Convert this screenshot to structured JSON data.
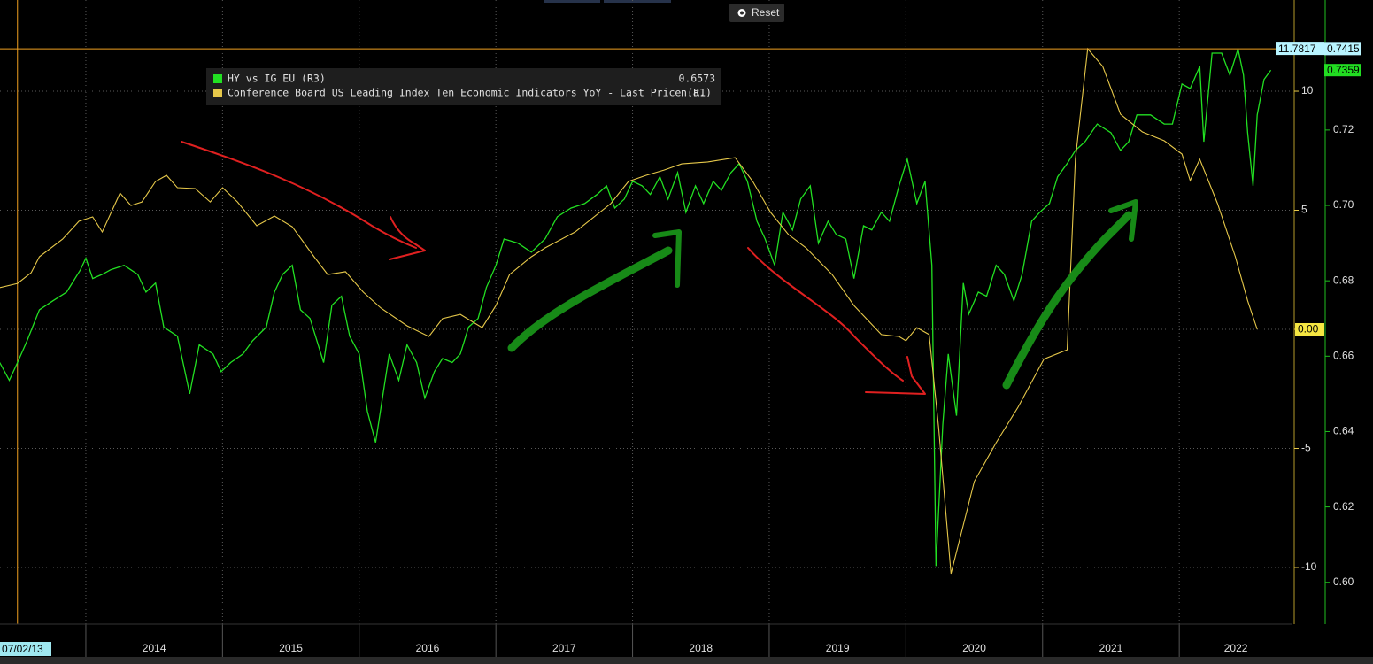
{
  "chart_data": {
    "type": "line",
    "xlim": [
      2013.372,
      2022.828
    ],
    "xticks": [
      {
        "value": 2014,
        "label": "2014"
      },
      {
        "value": 2015,
        "label": "2015"
      },
      {
        "value": 2016,
        "label": "2016"
      },
      {
        "value": 2017,
        "label": "2017"
      },
      {
        "value": 2018,
        "label": "2018"
      },
      {
        "value": 2019,
        "label": "2019"
      },
      {
        "value": 2020,
        "label": "2020"
      },
      {
        "value": 2021,
        "label": "2021"
      },
      {
        "value": 2022,
        "label": "2022"
      }
    ],
    "ylim": [
      -12.38,
      13.83
    ],
    "yticks": [
      -10,
      -5,
      0,
      5,
      10
    ],
    "y2lim": [
      0.5889,
      0.7545
    ],
    "y2ticks": [
      {
        "value": 0.6,
        "label": "0.60"
      },
      0.62,
      0.64,
      0.66,
      0.68,
      {
        "value": 0.7,
        "label": "0.70"
      },
      0.72
    ],
    "grid": true,
    "crosshair": {
      "x": 2013.5,
      "label": "07/02/13"
    },
    "reset_label": "Reset",
    "markers": [
      {
        "value": 11.7817,
        "axis": "y",
        "color": "#b8f4ff",
        "line": true
      },
      {
        "value": 0.7415,
        "axis": "y2",
        "color": "#b8f4ff"
      },
      {
        "value": 0.7359,
        "axis": "y2",
        "color": "#22dd22"
      },
      {
        "value": 0,
        "label": "0.00",
        "axis": "y",
        "color": "#f5e642"
      }
    ],
    "series": [
      {
        "name": "HY vs IG EU (R3)",
        "legend_value": 0.6573,
        "color": "#22e022",
        "axis": "y2",
        "x": [
          2013.37,
          2013.44,
          2013.5,
          2013.57,
          2013.66,
          2013.76,
          2013.86,
          2013.96,
          2014.0,
          2014.05,
          2014.12,
          2014.18,
          2014.28,
          2014.38,
          2014.44,
          2014.51,
          2014.57,
          2014.67,
          2014.76,
          2014.83,
          2014.93,
          2014.99,
          2015.06,
          2015.15,
          2015.22,
          2015.32,
          2015.38,
          2015.44,
          2015.51,
          2015.57,
          2015.64,
          2015.74,
          2015.8,
          2015.87,
          2015.93,
          2016.0,
          2016.06,
          2016.12,
          2016.17,
          2016.22,
          2016.29,
          2016.35,
          2016.42,
          2016.48,
          2016.55,
          2016.61,
          2016.68,
          2016.74,
          2016.8,
          2016.87,
          2016.93,
          2017.0,
          2017.06,
          2017.16,
          2017.26,
          2017.36,
          2017.45,
          2017.55,
          2017.65,
          2017.74,
          2017.81,
          2017.87,
          2017.94,
          2018.0,
          2018.07,
          2018.13,
          2018.2,
          2018.26,
          2018.33,
          2018.39,
          2018.46,
          2018.52,
          2018.59,
          2018.65,
          2018.72,
          2018.78,
          2018.84,
          2018.91,
          2018.97,
          2019.04,
          2019.1,
          2019.17,
          2019.23,
          2019.3,
          2019.36,
          2019.43,
          2019.49,
          2019.56,
          2019.62,
          2019.69,
          2019.75,
          2019.82,
          2019.88,
          2019.95,
          2020.01,
          2020.08,
          2020.14,
          2020.19,
          2020.22,
          2020.27,
          2020.31,
          2020.37,
          2020.42,
          2020.46,
          2020.53,
          2020.59,
          2020.66,
          2020.72,
          2020.79,
          2020.85,
          2020.92,
          2020.98,
          2021.05,
          2021.11,
          2021.18,
          2021.24,
          2021.31,
          2021.4,
          2021.5,
          2021.57,
          2021.63,
          2021.69,
          2021.79,
          2021.89,
          2021.95,
          2022.02,
          2022.08,
          2022.15,
          2022.18,
          2022.24,
          2022.31,
          2022.37,
          2022.43,
          2022.47,
          2022.5,
          2022.54,
          2022.57,
          2022.62,
          2022.67
        ],
        "values": [
          0.6583,
          0.6536,
          0.6583,
          0.6641,
          0.6723,
          0.6747,
          0.677,
          0.6829,
          0.686,
          0.6806,
          0.6817,
          0.6829,
          0.6841,
          0.6817,
          0.677,
          0.6794,
          0.6677,
          0.6653,
          0.65,
          0.663,
          0.6606,
          0.6559,
          0.6583,
          0.6606,
          0.6641,
          0.6677,
          0.677,
          0.6817,
          0.6841,
          0.6723,
          0.67,
          0.6583,
          0.6735,
          0.6759,
          0.6653,
          0.6606,
          0.6454,
          0.6371,
          0.6489,
          0.6606,
          0.6536,
          0.663,
          0.6583,
          0.6489,
          0.6559,
          0.6594,
          0.6583,
          0.6606,
          0.6677,
          0.67,
          0.6782,
          0.6841,
          0.6911,
          0.69,
          0.6876,
          0.6911,
          0.697,
          0.6993,
          0.7005,
          0.7029,
          0.7052,
          0.6993,
          0.7017,
          0.7064,
          0.7052,
          0.7029,
          0.7076,
          0.7017,
          0.7087,
          0.6982,
          0.7052,
          0.7005,
          0.7064,
          0.704,
          0.7087,
          0.7111,
          0.7064,
          0.6958,
          0.6911,
          0.6841,
          0.6982,
          0.6935,
          0.7017,
          0.7052,
          0.69,
          0.6958,
          0.6923,
          0.6911,
          0.6806,
          0.6946,
          0.6935,
          0.6982,
          0.6958,
          0.7052,
          0.7123,
          0.7005,
          0.7064,
          0.6841,
          0.6043,
          0.6418,
          0.6606,
          0.6442,
          0.6794,
          0.6712,
          0.677,
          0.6759,
          0.6841,
          0.6817,
          0.6747,
          0.6817,
          0.6958,
          0.6982,
          0.7005,
          0.7076,
          0.7111,
          0.7146,
          0.7169,
          0.7216,
          0.7193,
          0.7146,
          0.7169,
          0.724,
          0.724,
          0.7216,
          0.7216,
          0.7322,
          0.731,
          0.7369,
          0.7169,
          0.7404,
          0.7404,
          0.7346,
          0.7415,
          0.7346,
          0.7193,
          0.7052,
          0.724,
          0.7334,
          0.7359
        ]
      },
      {
        "name": "Conference Board US Leading Index Ten Economic Indicators YoY - Last Price (R1)",
        "legend_value": "n.a.",
        "color": "#e6c84a",
        "axis": "y",
        "x": [
          2013.37,
          2013.5,
          2013.6,
          2013.66,
          2013.83,
          2013.95,
          2014.05,
          2014.12,
          2014.25,
          2014.33,
          2014.41,
          2014.51,
          2014.59,
          2014.67,
          2014.8,
          2014.91,
          2015.0,
          2015.11,
          2015.25,
          2015.38,
          2015.51,
          2015.67,
          2015.77,
          2015.9,
          2016.03,
          2016.16,
          2016.35,
          2016.51,
          2016.61,
          2016.74,
          2016.9,
          2017.0,
          2017.1,
          2017.26,
          2017.36,
          2017.58,
          2017.84,
          2017.97,
          2018.1,
          2018.23,
          2018.36,
          2018.55,
          2018.75,
          2018.88,
          2019.01,
          2019.14,
          2019.27,
          2019.46,
          2019.62,
          2019.82,
          2019.95,
          2020.0,
          2020.08,
          2020.17,
          2020.24,
          2020.33,
          2020.5,
          2020.66,
          2020.82,
          2021.01,
          2021.18,
          2021.24,
          2021.33,
          2021.44,
          2021.57,
          2021.73,
          2021.89,
          2022.02,
          2022.08,
          2022.15,
          2022.28,
          2022.41,
          2022.5,
          2022.57
        ],
        "values": [
          1.75,
          1.93,
          2.38,
          3.05,
          3.79,
          4.54,
          4.72,
          4.09,
          5.72,
          5.2,
          5.35,
          6.21,
          6.47,
          5.95,
          5.91,
          5.35,
          5.95,
          5.35,
          4.35,
          4.76,
          4.31,
          3.05,
          2.3,
          2.42,
          1.56,
          0.89,
          0.15,
          -0.3,
          0.45,
          0.63,
          0.07,
          1.0,
          2.3,
          3.05,
          3.42,
          4.09,
          5.28,
          6.21,
          6.47,
          6.69,
          6.95,
          7.03,
          7.21,
          6.21,
          4.91,
          3.98,
          3.42,
          2.3,
          1.0,
          -0.22,
          -0.3,
          -0.48,
          0.07,
          -0.22,
          -4.16,
          -10.26,
          -6.39,
          -4.76,
          -3.27,
          -1.25,
          -0.86,
          7.14,
          11.7817,
          11.04,
          9.03,
          8.29,
          7.92,
          7.36,
          6.25,
          7.14,
          5.28,
          3.05,
          1.2,
          0
        ]
      }
    ]
  }
}
